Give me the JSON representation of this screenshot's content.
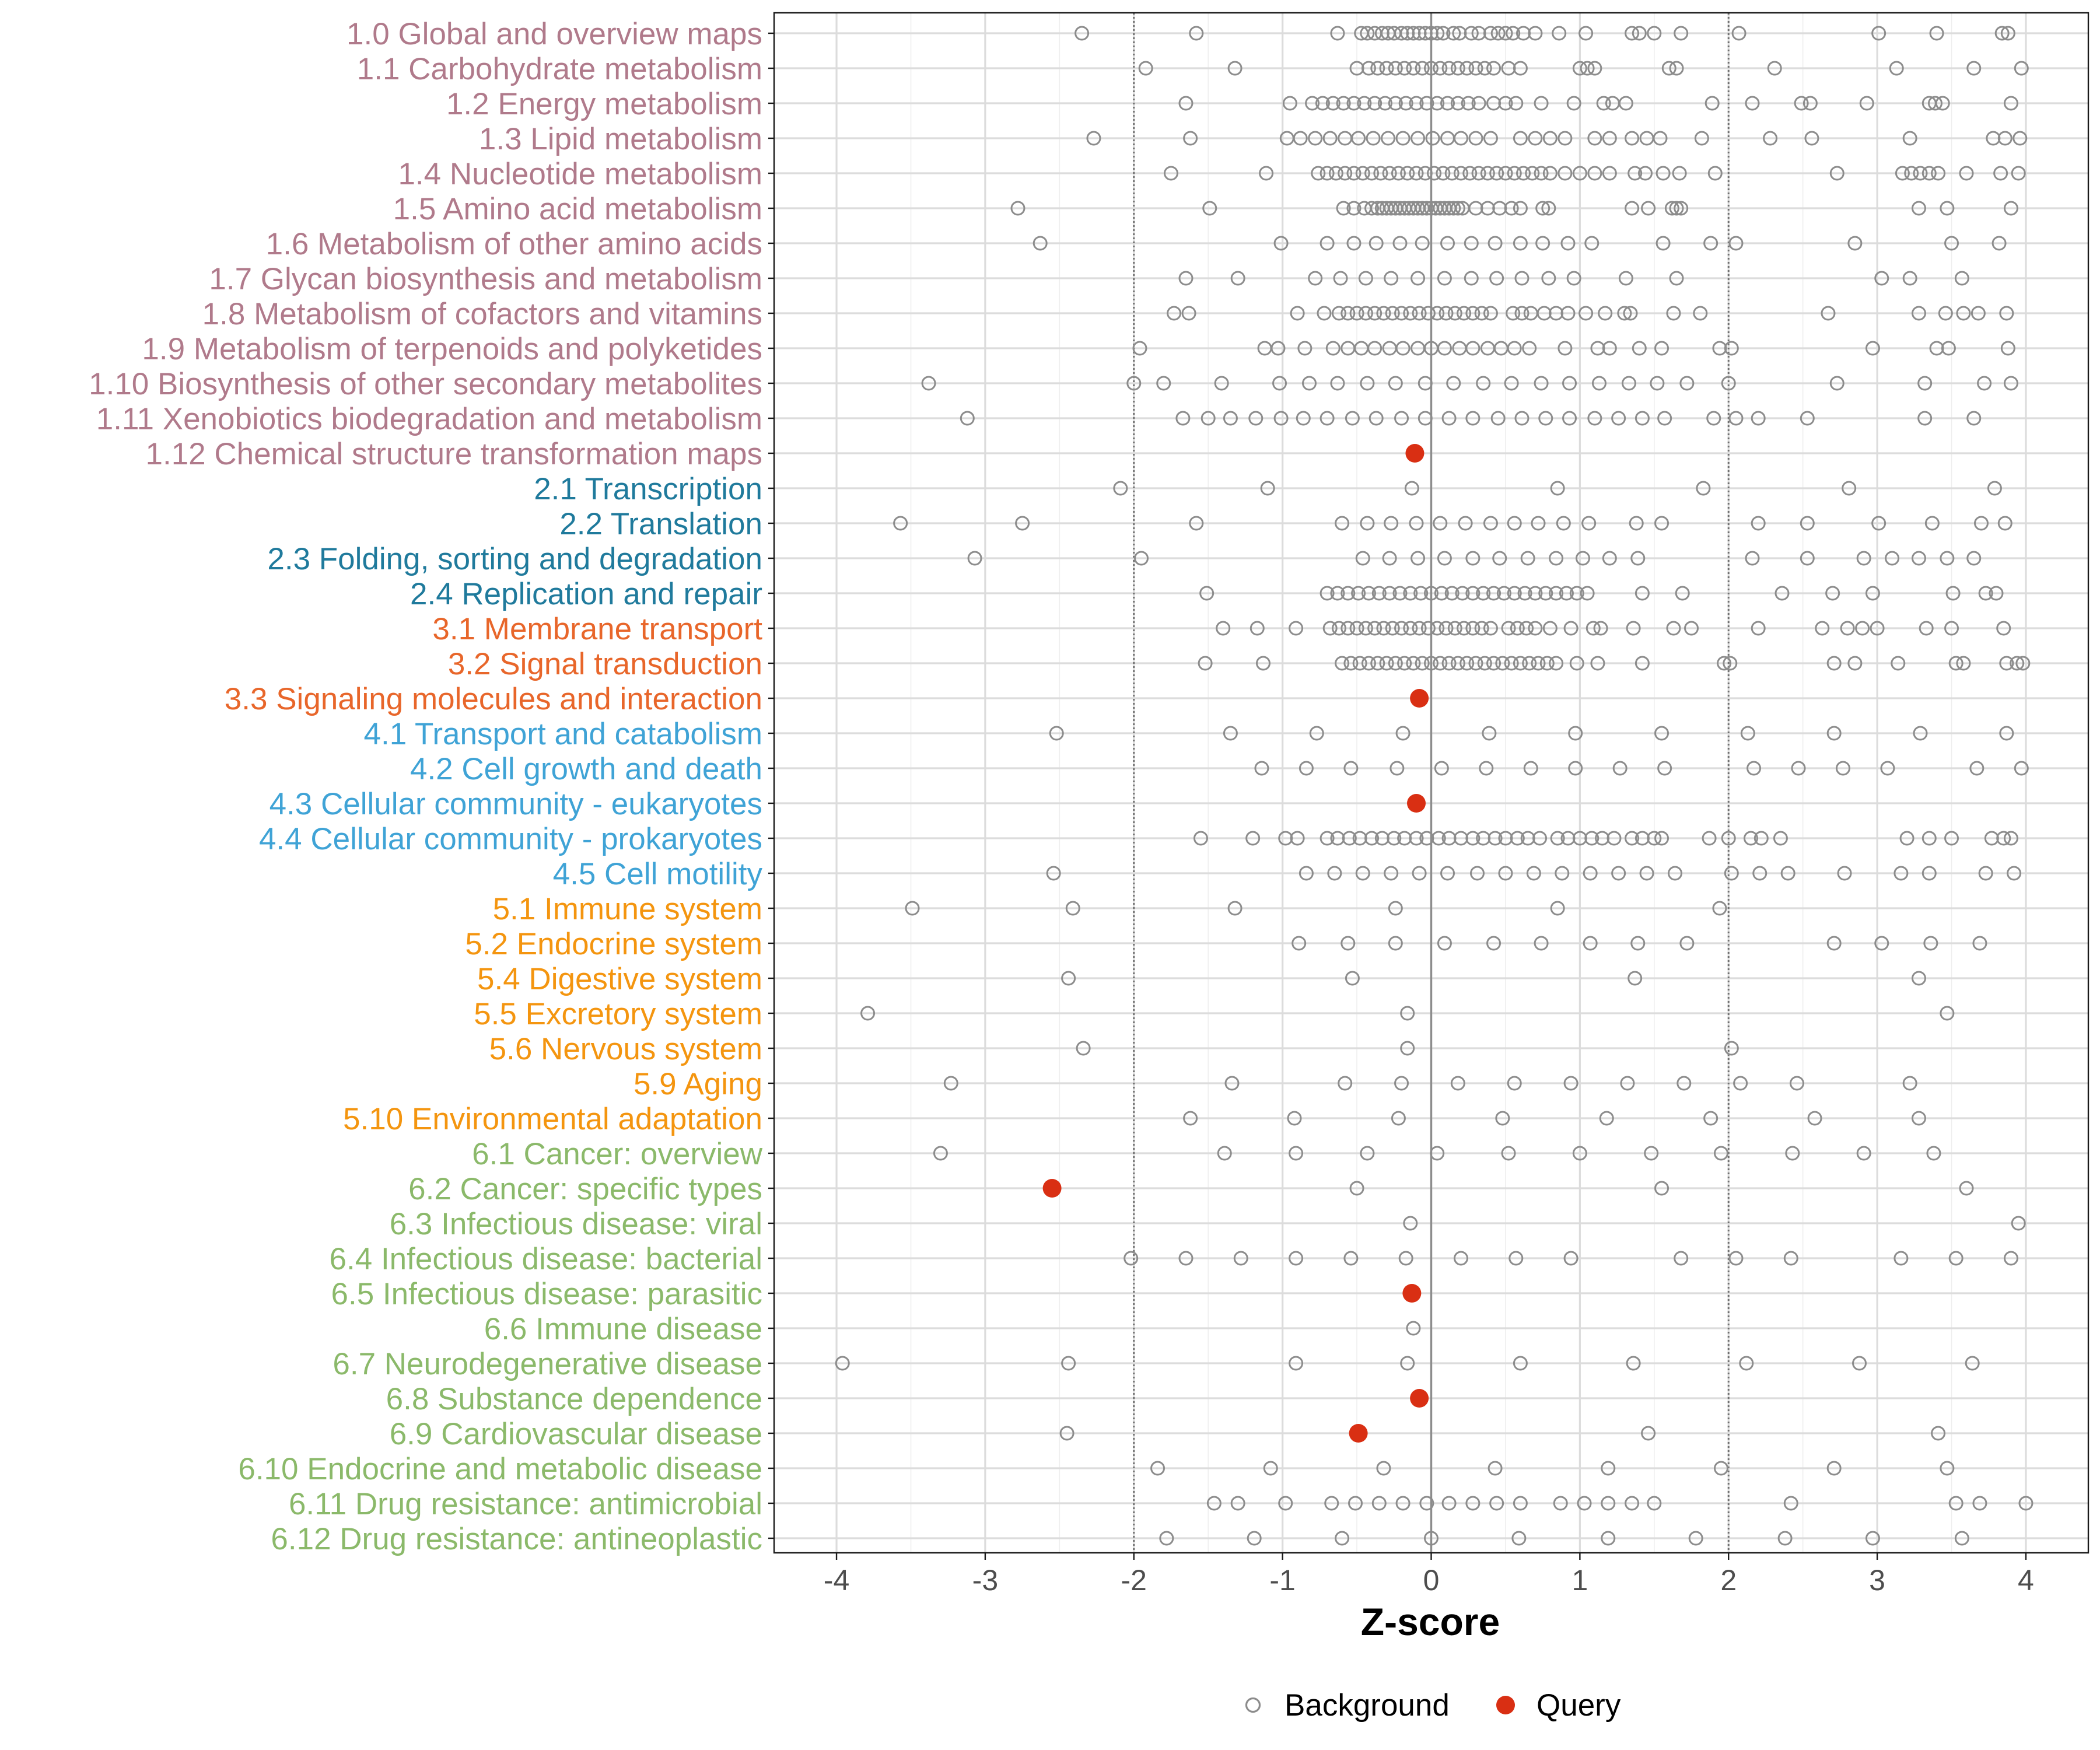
{
  "chart_data": {
    "type": "scatter",
    "title": "",
    "xlabel": "Z-score",
    "ylabel": "",
    "xlim": [
      -4.42,
      4.42
    ],
    "x_ticks": [
      "-4",
      "-3",
      "-2",
      "-1",
      "0",
      "1",
      "2",
      "3",
      "4"
    ],
    "reference_lines": {
      "solid": [
        0
      ],
      "dotted": [
        -2,
        2
      ]
    },
    "grid": true,
    "legend": {
      "position": "bottom",
      "entries": [
        {
          "label": "Background",
          "marker": "open-circle"
        },
        {
          "label": "Query",
          "marker": "filled-circle"
        }
      ]
    },
    "colors": {
      "group1": "#B07A8B",
      "group2": "#1F7A9C",
      "group3": "#E8662A",
      "group4": "#3FA3D6",
      "group5": "#F4950F",
      "group6": "#8BB96A",
      "background_marker": "#8C8C8C",
      "query_marker": "#D92F13"
    },
    "categories": [
      {
        "label": "1.0 Global and overview maps",
        "group": 1,
        "background": [
          -2.35,
          -1.58,
          -0.63,
          -0.47,
          -0.43,
          -0.38,
          -0.33,
          -0.29,
          -0.25,
          -0.2,
          -0.16,
          -0.12,
          -0.08,
          -0.04,
          0,
          0.04,
          0.08,
          0.15,
          0.19,
          0.27,
          0.32,
          0.4,
          0.45,
          0.5,
          0.55,
          0.62,
          0.7,
          0.86,
          1.04,
          1.35,
          1.4,
          1.5,
          1.68,
          2.07,
          3.01,
          3.4,
          3.84,
          3.88
        ]
      },
      {
        "label": "1.1 Carbohydrate metabolism",
        "group": 1,
        "background": [
          -1.92,
          -1.32,
          -0.5,
          -0.42,
          -0.36,
          -0.3,
          -0.24,
          -0.18,
          -0.12,
          -0.06,
          0,
          0.06,
          0.12,
          0.18,
          0.24,
          0.3,
          0.36,
          0.42,
          0.52,
          0.6,
          1.0,
          1.05,
          1.1,
          1.6,
          1.65,
          2.31,
          3.13,
          3.65,
          3.97
        ]
      },
      {
        "label": "1.2 Energy metabolism",
        "group": 1,
        "background": [
          -1.65,
          -0.95,
          -0.8,
          -0.73,
          -0.66,
          -0.59,
          -0.52,
          -0.45,
          -0.38,
          -0.31,
          -0.24,
          -0.17,
          -0.1,
          -0.03,
          0.04,
          0.11,
          0.18,
          0.25,
          0.32,
          0.42,
          0.5,
          0.57,
          0.74,
          0.96,
          1.16,
          1.22,
          1.31,
          1.89,
          2.16,
          2.49,
          2.55,
          2.93,
          3.35,
          3.39,
          3.44,
          3.9
        ]
      },
      {
        "label": "1.3 Lipid metabolism",
        "group": 1,
        "background": [
          -2.27,
          -1.62,
          -0.97,
          -0.88,
          -0.78,
          -0.68,
          -0.58,
          -0.49,
          -0.39,
          -0.29,
          -0.19,
          -0.09,
          0.01,
          0.11,
          0.2,
          0.3,
          0.4,
          0.6,
          0.7,
          0.8,
          0.9,
          1.1,
          1.2,
          1.35,
          1.45,
          1.54,
          1.82,
          2.28,
          2.56,
          3.22,
          3.78,
          3.86,
          3.96
        ]
      },
      {
        "label": "1.4 Nucleotide metabolism",
        "group": 1,
        "background": [
          -1.75,
          -1.11,
          -0.76,
          -0.7,
          -0.64,
          -0.58,
          -0.52,
          -0.46,
          -0.4,
          -0.34,
          -0.28,
          -0.22,
          -0.16,
          -0.1,
          -0.04,
          0.02,
          0.08,
          0.14,
          0.2,
          0.26,
          0.32,
          0.38,
          0.44,
          0.5,
          0.56,
          0.62,
          0.68,
          0.74,
          0.8,
          0.9,
          1.0,
          1.1,
          1.2,
          1.37,
          1.44,
          1.56,
          1.67,
          1.91,
          2.73,
          3.17,
          3.23,
          3.29,
          3.35,
          3.41,
          3.6,
          3.83,
          3.95
        ]
      },
      {
        "label": "1.5 Amino acid metabolism",
        "group": 1,
        "background": [
          -2.78,
          -1.49,
          -0.59,
          -0.52,
          -0.45,
          -0.4,
          -0.36,
          -0.33,
          -0.3,
          -0.27,
          -0.24,
          -0.21,
          -0.18,
          -0.15,
          -0.12,
          -0.09,
          -0.06,
          -0.03,
          0,
          0.03,
          0.06,
          0.09,
          0.12,
          0.15,
          0.18,
          0.21,
          0.3,
          0.38,
          0.46,
          0.54,
          0.6,
          0.75,
          0.79,
          1.35,
          1.46,
          1.62,
          1.65,
          1.68,
          3.28,
          3.47,
          3.9
        ]
      },
      {
        "label": "1.6 Metabolism of other amino acids",
        "group": 1,
        "background": [
          -2.63,
          -1.01,
          -0.7,
          -0.52,
          -0.37,
          -0.21,
          -0.06,
          0.11,
          0.27,
          0.43,
          0.6,
          0.75,
          0.92,
          1.08,
          1.56,
          1.88,
          2.05,
          2.85,
          3.5,
          3.82
        ]
      },
      {
        "label": "1.7 Glycan biosynthesis and metabolism",
        "group": 1,
        "background": [
          -1.65,
          -1.3,
          -0.78,
          -0.61,
          -0.44,
          -0.27,
          -0.09,
          0.09,
          0.27,
          0.44,
          0.61,
          0.79,
          0.96,
          1.31,
          1.65,
          3.03,
          3.22,
          3.57
        ]
      },
      {
        "label": "1.8 Metabolism of cofactors and vitamins",
        "group": 1,
        "background": [
          -1.73,
          -1.63,
          -0.9,
          -0.72,
          -0.62,
          -0.56,
          -0.5,
          -0.44,
          -0.38,
          -0.32,
          -0.26,
          -0.2,
          -0.14,
          -0.08,
          -0.02,
          0.04,
          0.1,
          0.16,
          0.22,
          0.28,
          0.34,
          0.4,
          0.55,
          0.61,
          0.67,
          0.76,
          0.84,
          0.92,
          1.04,
          1.17,
          1.3,
          1.34,
          1.63,
          1.81,
          2.67,
          3.28,
          3.46,
          3.58,
          3.68,
          3.87
        ]
      },
      {
        "label": "1.9 Metabolism of terpenoids and polyketides",
        "group": 1,
        "background": [
          -1.96,
          -1.12,
          -1.03,
          -0.85,
          -0.66,
          -0.56,
          -0.47,
          -0.38,
          -0.28,
          -0.19,
          -0.09,
          0,
          0.09,
          0.19,
          0.28,
          0.38,
          0.47,
          0.56,
          0.66,
          0.9,
          1.12,
          1.2,
          1.4,
          1.55,
          1.94,
          2.02,
          2.97,
          3.4,
          3.48,
          3.88
        ]
      },
      {
        "label": "1.10 Biosynthesis of other secondary metabolites",
        "group": 1,
        "background": [
          -3.38,
          -2.0,
          -1.8,
          -1.41,
          -1.02,
          -0.82,
          -0.63,
          -0.43,
          -0.24,
          -0.04,
          0.15,
          0.35,
          0.54,
          0.74,
          0.93,
          1.13,
          1.33,
          1.52,
          1.72,
          2.0,
          2.73,
          3.32,
          3.72,
          3.9
        ]
      },
      {
        "label": "1.11 Xenobiotics biodegradation and metabolism",
        "group": 1,
        "background": [
          -3.12,
          -1.67,
          -1.5,
          -1.35,
          -1.18,
          -1.01,
          -0.86,
          -0.7,
          -0.53,
          -0.37,
          -0.2,
          -0.04,
          0.12,
          0.28,
          0.45,
          0.61,
          0.77,
          0.93,
          1.1,
          1.26,
          1.42,
          1.57,
          1.9,
          2.05,
          2.2,
          2.53,
          3.32,
          3.65
        ]
      },
      {
        "label": "1.12 Chemical structure transformation maps",
        "group": 1,
        "background": [],
        "query": -0.11
      },
      {
        "label": "2.1 Transcription",
        "group": 2,
        "background": [
          -2.09,
          -1.1,
          -0.13,
          0.85,
          1.83,
          2.81,
          3.79
        ]
      },
      {
        "label": "2.2 Translation",
        "group": 2,
        "background": [
          -3.57,
          -2.75,
          -1.58,
          -0.6,
          -0.43,
          -0.27,
          -0.1,
          0.06,
          0.23,
          0.4,
          0.56,
          0.72,
          0.89,
          1.06,
          1.38,
          1.55,
          2.2,
          2.53,
          3.01,
          3.37,
          3.7,
          3.86
        ]
      },
      {
        "label": "2.3 Folding, sorting and degradation",
        "group": 2,
        "background": [
          -3.07,
          -1.95,
          -0.46,
          -0.28,
          -0.09,
          0.09,
          0.28,
          0.46,
          0.65,
          0.84,
          1.02,
          1.2,
          1.39,
          2.16,
          2.53,
          2.91,
          3.1,
          3.28,
          3.47,
          3.65
        ]
      },
      {
        "label": "2.4 Replication and repair",
        "group": 2,
        "background": [
          -1.51,
          -0.7,
          -0.63,
          -0.56,
          -0.49,
          -0.42,
          -0.35,
          -0.28,
          -0.21,
          -0.14,
          -0.07,
          0,
          0.07,
          0.14,
          0.21,
          0.28,
          0.35,
          0.42,
          0.49,
          0.56,
          0.63,
          0.7,
          0.77,
          0.84,
          0.91,
          0.98,
          1.05,
          1.42,
          1.69,
          2.36,
          2.7,
          2.97,
          3.51,
          3.73,
          3.8
        ]
      },
      {
        "label": "3.1 Membrane transport",
        "group": 3,
        "background": [
          -1.4,
          -1.17,
          -0.91,
          -0.68,
          -0.62,
          -0.56,
          -0.5,
          -0.44,
          -0.38,
          -0.32,
          -0.26,
          -0.2,
          -0.14,
          -0.08,
          -0.02,
          0.04,
          0.1,
          0.16,
          0.22,
          0.28,
          0.34,
          0.4,
          0.52,
          0.58,
          0.64,
          0.7,
          0.8,
          0.94,
          1.09,
          1.14,
          1.36,
          1.63,
          1.75,
          2.2,
          2.63,
          2.8,
          2.9,
          3.0,
          3.33,
          3.5,
          3.85
        ]
      },
      {
        "label": "3.2 Signal transduction",
        "group": 3,
        "background": [
          -1.52,
          -1.13,
          -0.6,
          -0.54,
          -0.48,
          -0.42,
          -0.36,
          -0.3,
          -0.24,
          -0.18,
          -0.12,
          -0.06,
          0,
          0.06,
          0.12,
          0.18,
          0.24,
          0.3,
          0.36,
          0.42,
          0.48,
          0.54,
          0.6,
          0.66,
          0.72,
          0.78,
          0.84,
          0.98,
          1.12,
          1.42,
          1.97,
          2.01,
          2.71,
          2.85,
          3.14,
          3.53,
          3.58,
          3.87,
          3.94,
          3.98
        ]
      },
      {
        "label": "3.3 Signaling molecules and interaction",
        "group": 3,
        "background": [],
        "query": -0.08
      },
      {
        "label": "4.1 Transport and catabolism",
        "group": 4,
        "background": [
          -2.52,
          -1.35,
          -0.77,
          -0.19,
          0.39,
          0.97,
          1.55,
          2.13,
          2.71,
          3.29,
          3.87
        ]
      },
      {
        "label": "4.2 Cell growth and death",
        "group": 4,
        "background": [
          -1.14,
          -0.84,
          -0.54,
          -0.23,
          0.07,
          0.37,
          0.67,
          0.97,
          1.27,
          1.57,
          2.17,
          2.47,
          2.77,
          3.07,
          3.67,
          3.97
        ]
      },
      {
        "label": "4.3 Cellular community - eukaryotes",
        "group": 4,
        "background": [],
        "query": -0.1
      },
      {
        "label": "4.4 Cellular community - prokaryotes",
        "group": 4,
        "background": [
          -1.55,
          -1.2,
          -0.98,
          -0.9,
          -0.7,
          -0.63,
          -0.55,
          -0.48,
          -0.4,
          -0.33,
          -0.25,
          -0.18,
          -0.1,
          -0.03,
          0.05,
          0.12,
          0.2,
          0.28,
          0.35,
          0.43,
          0.5,
          0.58,
          0.65,
          0.73,
          0.85,
          0.92,
          1.0,
          1.08,
          1.15,
          1.23,
          1.35,
          1.42,
          1.5,
          1.55,
          1.87,
          2.0,
          2.15,
          2.22,
          2.35,
          3.2,
          3.35,
          3.5,
          3.77,
          3.85,
          3.9
        ]
      },
      {
        "label": "4.5 Cell motility",
        "group": 4,
        "background": [
          -2.54,
          -0.84,
          -0.65,
          -0.46,
          -0.27,
          -0.08,
          0.11,
          0.31,
          0.5,
          0.69,
          0.88,
          1.07,
          1.26,
          1.45,
          1.64,
          2.02,
          2.21,
          2.4,
          2.78,
          3.16,
          3.35,
          3.73,
          3.92
        ]
      },
      {
        "label": "5.1 Immune system",
        "group": 5,
        "background": [
          -3.49,
          -2.41,
          -1.32,
          -0.24,
          0.85,
          1.94
        ]
      },
      {
        "label": "5.2 Endocrine system",
        "group": 5,
        "background": [
          -0.89,
          -0.56,
          -0.24,
          0.09,
          0.42,
          0.74,
          1.07,
          1.39,
          1.72,
          2.71,
          3.03,
          3.36,
          3.69
        ]
      },
      {
        "label": "5.4 Digestive system",
        "group": 5,
        "background": [
          -2.44,
          -0.53,
          1.37,
          3.28
        ]
      },
      {
        "label": "5.5 Excretory system",
        "group": 5,
        "background": [
          -3.79,
          -0.16,
          3.47
        ]
      },
      {
        "label": "5.6 Nervous system",
        "group": 5,
        "background": [
          -2.34,
          -0.16,
          2.02
        ]
      },
      {
        "label": "5.9 Aging",
        "group": 5,
        "background": [
          -3.23,
          -1.34,
          -0.58,
          -0.2,
          0.18,
          0.56,
          0.94,
          1.32,
          1.7,
          2.08,
          2.46,
          3.22
        ]
      },
      {
        "label": "5.10 Environmental adaptation",
        "group": 5,
        "background": [
          -1.62,
          -0.92,
          -0.22,
          0.48,
          1.18,
          1.88,
          2.58,
          3.28
        ]
      },
      {
        "label": "6.1 Cancer: overview",
        "group": 6,
        "background": [
          -3.3,
          -1.39,
          -0.91,
          -0.43,
          0.04,
          0.52,
          1.0,
          1.48,
          1.95,
          2.43,
          2.91,
          3.38
        ]
      },
      {
        "label": "6.2 Cancer: specific types",
        "group": 6,
        "background": [
          -0.5,
          1.55,
          3.6
        ],
        "query": -2.55
      },
      {
        "label": "6.3 Infectious disease: viral",
        "group": 6,
        "background": [
          -0.14,
          3.95
        ]
      },
      {
        "label": "6.4 Infectious disease: bacterial",
        "group": 6,
        "background": [
          -2.02,
          -1.65,
          -1.28,
          -0.91,
          -0.54,
          -0.17,
          0.2,
          0.57,
          0.94,
          1.68,
          2.05,
          2.42,
          3.16,
          3.53,
          3.9
        ]
      },
      {
        "label": "6.5 Infectious disease: parasitic",
        "group": 6,
        "background": [],
        "query": -0.13
      },
      {
        "label": "6.6 Immune disease",
        "group": 6,
        "background": [
          -0.12
        ]
      },
      {
        "label": "6.7 Neurodegenerative disease",
        "group": 6,
        "background": [
          -3.96,
          -2.44,
          -0.91,
          -0.16,
          0.6,
          1.36,
          2.12,
          2.88,
          3.64
        ]
      },
      {
        "label": "6.8 Substance dependence",
        "group": 6,
        "background": [],
        "query": -0.08
      },
      {
        "label": "6.9 Cardiovascular disease",
        "group": 6,
        "background": [
          -2.45,
          1.46,
          3.41
        ],
        "query": -0.49
      },
      {
        "label": "6.10 Endocrine and metabolic disease",
        "group": 6,
        "background": [
          -1.84,
          -1.08,
          -0.32,
          0.43,
          1.19,
          1.95,
          2.71,
          3.47
        ]
      },
      {
        "label": "6.11 Drug resistance: antimicrobial",
        "group": 6,
        "background": [
          -1.46,
          -1.3,
          -0.98,
          -0.67,
          -0.51,
          -0.35,
          -0.19,
          -0.03,
          0.12,
          0.28,
          0.44,
          0.6,
          0.87,
          1.03,
          1.19,
          1.35,
          1.5,
          2.42,
          3.53,
          3.69,
          4.0
        ]
      },
      {
        "label": "6.12 Drug resistance: antineoplastic",
        "group": 6,
        "background": [
          -1.78,
          -1.19,
          -0.6,
          0,
          0.59,
          1.19,
          1.78,
          2.38,
          2.97,
          3.57
        ]
      }
    ]
  }
}
